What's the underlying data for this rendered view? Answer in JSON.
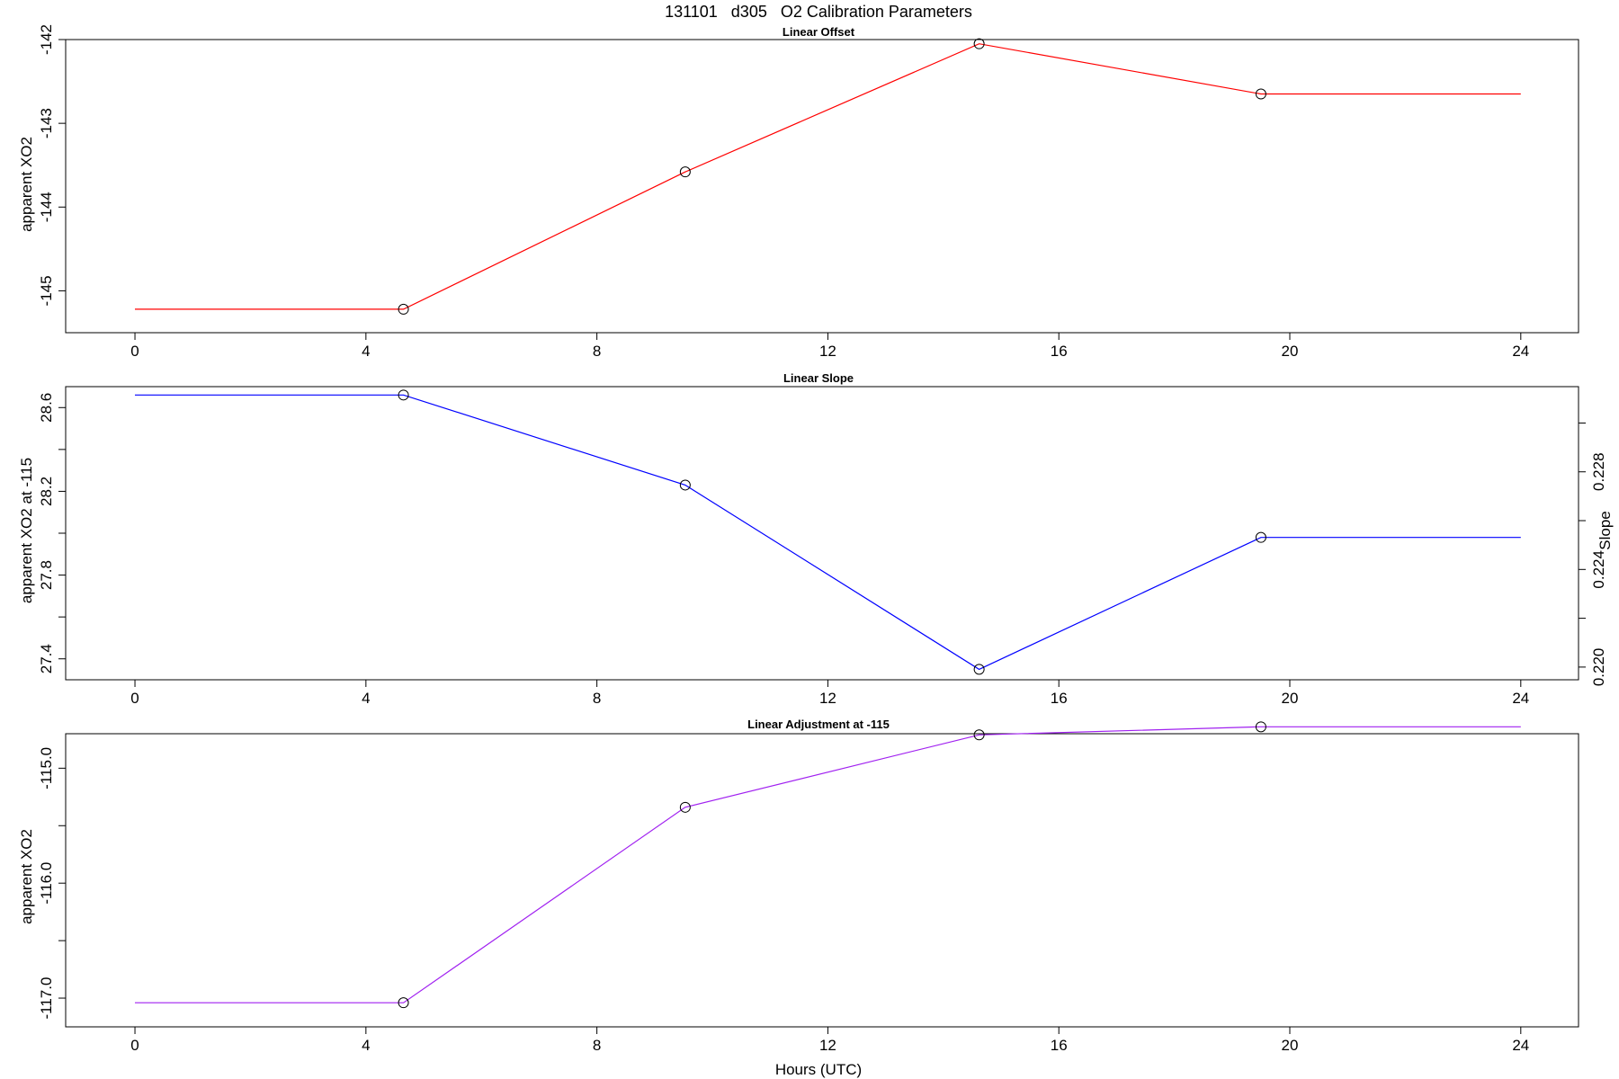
{
  "figure": {
    "title": "131101   d305   O2 Calibration Parameters"
  },
  "chart_data": [
    {
      "type": "line",
      "title": "Linear Offset",
      "xlabel": "",
      "ylabel": "apparent XO2",
      "xlim": [
        -1.2,
        25
      ],
      "ylim": [
        -145.5,
        -142
      ],
      "xticks": [
        0,
        4,
        8,
        12,
        16,
        20,
        24
      ],
      "yticks": [
        -145,
        -144,
        -143,
        -142
      ],
      "yticks_minor": [],
      "ytick_labels": [
        "-145",
        "-144",
        "-143",
        "-142"
      ],
      "series": [
        {
          "color": "#ff0000",
          "x": [
            0,
            4.65,
            9.53,
            14.62,
            19.5,
            24
          ],
          "y": [
            -145.22,
            -145.22,
            -143.58,
            -142.05,
            -142.65,
            -142.65
          ],
          "markers": [
            false,
            true,
            true,
            true,
            true,
            false
          ]
        }
      ]
    },
    {
      "type": "line",
      "title": "Linear Slope",
      "xlabel": "",
      "ylabel": "apparent XO2 at -115",
      "ylabel_right": "Slope",
      "xlim": [
        -1.2,
        25
      ],
      "ylim": [
        27.3,
        28.7
      ],
      "xticks": [
        0,
        4,
        8,
        12,
        16,
        20,
        24
      ],
      "yticks": [
        27.4,
        27.8,
        28.2,
        28.6
      ],
      "yticks_minor": [
        27.6,
        28.0,
        28.4
      ],
      "ytick_labels": [
        "27.4",
        "27.8",
        "28.2",
        "28.6"
      ],
      "yticks_right": [
        0.22,
        0.224,
        0.228
      ],
      "yticks_right_minor": [
        0.222,
        0.226,
        0.23
      ],
      "ytick_labels_right": [
        "0.220",
        "0.224",
        "0.228"
      ],
      "ylim_right": [
        0.21948,
        0.23149
      ],
      "series": [
        {
          "color": "#0000ff",
          "x": [
            0,
            4.65,
            9.53,
            14.62,
            19.5,
            24
          ],
          "y": [
            28.66,
            28.66,
            28.23,
            27.35,
            27.98,
            27.98
          ],
          "markers": [
            false,
            true,
            true,
            true,
            true,
            false
          ]
        }
      ]
    },
    {
      "type": "line",
      "title": "Linear Adjustment at -115",
      "xlabel": "Hours (UTC)",
      "ylabel": "apparent XO2",
      "xlim": [
        -1.2,
        25
      ],
      "ylim": [
        -117.25,
        -114.7
      ],
      "xticks": [
        0,
        4,
        8,
        12,
        16,
        20,
        24
      ],
      "yticks": [
        -117.0,
        -116.0,
        -115.0
      ],
      "yticks_minor": [
        -116.5,
        -115.5
      ],
      "ytick_labels": [
        "-117.0",
        "-116.0",
        "-115.0"
      ],
      "series": [
        {
          "color": "#a020f0",
          "x": [
            0,
            4.65,
            9.53,
            14.62,
            19.5,
            24
          ],
          "y": [
            -117.04,
            -117.04,
            -115.34,
            -114.71,
            -114.64,
            -114.64
          ],
          "markers": [
            false,
            true,
            true,
            true,
            true,
            false
          ]
        }
      ]
    }
  ]
}
